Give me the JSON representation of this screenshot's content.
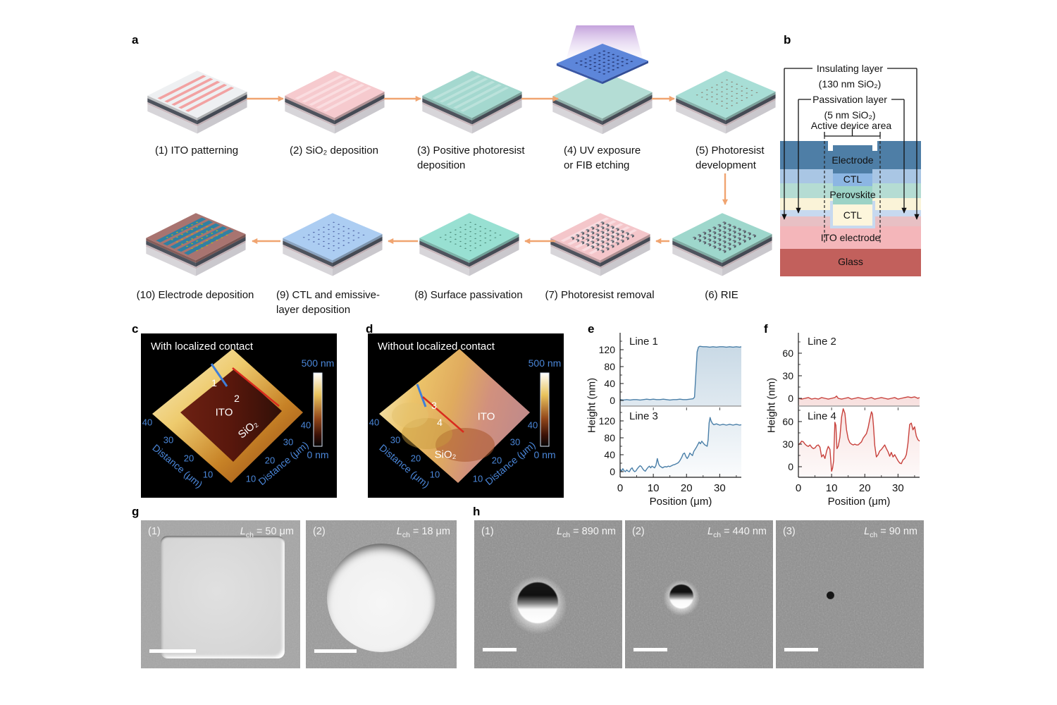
{
  "figure": {
    "panel_labels": {
      "a": "a",
      "b": "b",
      "c": "c",
      "d": "d",
      "e": "e",
      "f": "f",
      "g": "g",
      "h": "h"
    }
  },
  "panel_a": {
    "steps": [
      {
        "lines": [
          "(1) ITO patterning"
        ]
      },
      {
        "lines": [
          "(2) SiO₂ deposition"
        ]
      },
      {
        "lines": [
          "(3) Positive photoresist",
          "deposition"
        ]
      },
      {
        "lines": [
          "(4) UV exposure",
          "or FIB etching"
        ]
      },
      {
        "lines": [
          "(5) Photoresist",
          "development"
        ]
      },
      {
        "lines": [
          "(6) RIE"
        ]
      },
      {
        "lines": [
          "(7) Photoresist removal"
        ]
      },
      {
        "lines": [
          "(8) Surface passivation"
        ]
      },
      {
        "lines": [
          "(9) CTL and emissive-",
          "layer deposition"
        ]
      },
      {
        "lines": [
          "(10) Electrode deposition"
        ]
      }
    ]
  },
  "panel_b": {
    "labels": {
      "insulating_1": "Insulating layer",
      "insulating_2": "(130 nm SiO₂)",
      "passivation_1": "Passivation layer",
      "passivation_2": "(5 nm SiO₂)",
      "active": "Active device area",
      "electrode": "Electrode",
      "ctl_top": "CTL",
      "perovskite": "Perovskite",
      "ctl_bottom": "CTL",
      "ito": "ITO electrode",
      "glass": "Glass"
    }
  },
  "panel_c": {
    "title": "With localized contact",
    "marker_1": "1",
    "marker_2": "2",
    "region_ito": "ITO",
    "region_sio2": "SiO₂",
    "colorbar_max": "500 nm",
    "colorbar_min": "0 nm",
    "ticks": [
      "40",
      "30",
      "20",
      "10"
    ],
    "axis_label": "Distance (μm)"
  },
  "panel_d": {
    "title": "Without localized contact",
    "marker_1": "3",
    "marker_2": "4",
    "region_ito": "ITO",
    "region_sio2": "SiO₂",
    "colorbar_max": "500 nm",
    "colorbar_min": "0 nm",
    "ticks": [
      "40",
      "30",
      "20",
      "10"
    ],
    "axis_label": "Distance (μm)"
  },
  "chart_data": [
    {
      "panel": "e",
      "type": "line",
      "xlabel": "Position (μm)",
      "ylabel": "Height (nm)",
      "xlim": [
        0,
        36.5
      ],
      "xticks": [
        0,
        10,
        20,
        30
      ],
      "yticks": [
        0,
        40,
        80,
        120
      ],
      "ylim": [
        -12,
        158
      ],
      "line_color": "#4a7fa8",
      "series": [
        {
          "name": "Line 1",
          "points": [
            [
              0,
              2
            ],
            [
              1,
              1
            ],
            [
              2,
              2
            ],
            [
              3,
              1
            ],
            [
              4,
              2
            ],
            [
              5,
              2
            ],
            [
              6,
              1
            ],
            [
              7,
              2
            ],
            [
              8,
              3
            ],
            [
              9,
              2
            ],
            [
              10,
              3
            ],
            [
              11,
              2
            ],
            [
              12,
              2
            ],
            [
              13,
              3
            ],
            [
              14,
              2
            ],
            [
              15,
              1
            ],
            [
              16,
              2
            ],
            [
              17,
              2
            ],
            [
              18,
              3
            ],
            [
              19,
              2
            ],
            [
              20,
              2
            ],
            [
              21,
              3
            ],
            [
              22,
              4
            ],
            [
              22.4,
              8
            ],
            [
              22.8,
              60
            ],
            [
              23.2,
              115
            ],
            [
              23.6,
              126
            ],
            [
              24,
              128
            ],
            [
              25,
              127
            ],
            [
              26,
              127
            ],
            [
              27,
              126
            ],
            [
              28,
              127
            ],
            [
              29,
              126
            ],
            [
              30,
              127
            ],
            [
              31,
              127
            ],
            [
              32,
              126
            ],
            [
              33,
              127
            ],
            [
              34,
              126
            ],
            [
              35,
              127
            ],
            [
              36,
              126
            ],
            [
              36.5,
              127
            ]
          ]
        },
        {
          "name": "Line 3",
          "points": [
            [
              0,
              6
            ],
            [
              0.4,
              1
            ],
            [
              0.8,
              7
            ],
            [
              1.2,
              2
            ],
            [
              1.6,
              0
            ],
            [
              2,
              4
            ],
            [
              2.4,
              1
            ],
            [
              2.8,
              0
            ],
            [
              3.2,
              6
            ],
            [
              3.6,
              9
            ],
            [
              4,
              3
            ],
            [
              4.4,
              0
            ],
            [
              4.8,
              2
            ],
            [
              5.2,
              7
            ],
            [
              5.6,
              11
            ],
            [
              6,
              14
            ],
            [
              6.4,
              12
            ],
            [
              6.8,
              7
            ],
            [
              7.2,
              3
            ],
            [
              7.6,
              1
            ],
            [
              8,
              6
            ],
            [
              8.4,
              10
            ],
            [
              8.8,
              13
            ],
            [
              9.2,
              9
            ],
            [
              9.6,
              13
            ],
            [
              10,
              11
            ],
            [
              10.4,
              9
            ],
            [
              10.8,
              15
            ],
            [
              11.2,
              31
            ],
            [
              11.6,
              18
            ],
            [
              12,
              13
            ],
            [
              12.4,
              11
            ],
            [
              12.8,
              9
            ],
            [
              13.2,
              11
            ],
            [
              13.6,
              12
            ],
            [
              14,
              11
            ],
            [
              14.5,
              13
            ],
            [
              15,
              12
            ],
            [
              15.5,
              14
            ],
            [
              16,
              16
            ],
            [
              16.5,
              17
            ],
            [
              17,
              19
            ],
            [
              17.5,
              21
            ],
            [
              18,
              26
            ],
            [
              18.5,
              33
            ],
            [
              19,
              42
            ],
            [
              19.4,
              44
            ],
            [
              19.8,
              36
            ],
            [
              20.2,
              31
            ],
            [
              20.6,
              36
            ],
            [
              21,
              44
            ],
            [
              21.4,
              41
            ],
            [
              21.8,
              38
            ],
            [
              22.2,
              48
            ],
            [
              22.6,
              53
            ],
            [
              23,
              58
            ],
            [
              23.4,
              64
            ],
            [
              23.8,
              70
            ],
            [
              24.2,
              66
            ],
            [
              24.6,
              72
            ],
            [
              25,
              68
            ],
            [
              25.4,
              64
            ],
            [
              25.8,
              62
            ],
            [
              26.2,
              60
            ],
            [
              26.5,
              75
            ],
            [
              26.8,
              115
            ],
            [
              27.1,
              128
            ],
            [
              27.4,
              120
            ],
            [
              27.8,
              114
            ],
            [
              28.2,
              111
            ],
            [
              29,
              113
            ],
            [
              30,
              110
            ],
            [
              31,
              112
            ],
            [
              32,
              110
            ],
            [
              33,
              112
            ],
            [
              34,
              110
            ],
            [
              35,
              112
            ],
            [
              36,
              110
            ],
            [
              36.5,
              111
            ]
          ]
        }
      ]
    },
    {
      "panel": "f",
      "type": "line",
      "xlabel": "Position (μm)",
      "ylabel": "Height (nm)",
      "xlim": [
        0,
        36.5
      ],
      "xticks": [
        0,
        10,
        20,
        30
      ],
      "yticks": [
        0,
        30,
        60
      ],
      "ylim": [
        -14,
        88
      ],
      "line_color": "#c8413c",
      "series": [
        {
          "name": "Line 2",
          "points": [
            [
              0,
              0
            ],
            [
              1,
              -1
            ],
            [
              2,
              0
            ],
            [
              3,
              1
            ],
            [
              4,
              -1
            ],
            [
              5,
              0
            ],
            [
              6,
              -1
            ],
            [
              7,
              1
            ],
            [
              8,
              0
            ],
            [
              9,
              -1
            ],
            [
              10,
              0
            ],
            [
              11,
              1
            ],
            [
              11.5,
              3
            ],
            [
              12,
              0
            ],
            [
              13,
              -1
            ],
            [
              14,
              0
            ],
            [
              15,
              1
            ],
            [
              16,
              -1
            ],
            [
              17,
              0
            ],
            [
              18,
              1
            ],
            [
              19,
              0
            ],
            [
              20,
              -1
            ],
            [
              21,
              0
            ],
            [
              22,
              1
            ],
            [
              23,
              -1
            ],
            [
              24,
              0
            ],
            [
              25,
              1
            ],
            [
              26,
              0
            ],
            [
              27,
              -1
            ],
            [
              28,
              0
            ],
            [
              29,
              1
            ],
            [
              30,
              -1
            ],
            [
              31,
              0
            ],
            [
              32,
              1
            ],
            [
              33,
              2
            ],
            [
              34,
              1
            ],
            [
              35,
              2
            ],
            [
              36,
              0
            ],
            [
              36.5,
              1
            ]
          ]
        },
        {
          "name": "Line 4",
          "points": [
            [
              0,
              29
            ],
            [
              0.5,
              31
            ],
            [
              1,
              34
            ],
            [
              1.5,
              33
            ],
            [
              2,
              30
            ],
            [
              2.5,
              28
            ],
            [
              3,
              27
            ],
            [
              3.5,
              29
            ],
            [
              4,
              26
            ],
            [
              4.5,
              24
            ],
            [
              5,
              25
            ],
            [
              5.5,
              28
            ],
            [
              6,
              29
            ],
            [
              6.5,
              26
            ],
            [
              7,
              13
            ],
            [
              7.5,
              16
            ],
            [
              8,
              11
            ],
            [
              8.5,
              21
            ],
            [
              9,
              27
            ],
            [
              9.5,
              23
            ],
            [
              10,
              -6
            ],
            [
              10.3,
              -2
            ],
            [
              10.6,
              8
            ],
            [
              11,
              59
            ],
            [
              11.3,
              55
            ],
            [
              11.6,
              24
            ],
            [
              12,
              27
            ],
            [
              12.5,
              39
            ],
            [
              13,
              66
            ],
            [
              13.5,
              77
            ],
            [
              14,
              71
            ],
            [
              14.5,
              49
            ],
            [
              15,
              37
            ],
            [
              15.5,
              32
            ],
            [
              16,
              30
            ],
            [
              16.5,
              29
            ],
            [
              17,
              30
            ],
            [
              17.5,
              29
            ],
            [
              18,
              29
            ],
            [
              18.5,
              31
            ],
            [
              19,
              33
            ],
            [
              19.5,
              38
            ],
            [
              20,
              41
            ],
            [
              20.5,
              44
            ],
            [
              21,
              52
            ],
            [
              21.5,
              63
            ],
            [
              22,
              73
            ],
            [
              22.3,
              70
            ],
            [
              22.6,
              55
            ],
            [
              23,
              28
            ],
            [
              23.5,
              13
            ],
            [
              24,
              16
            ],
            [
              24.5,
              21
            ],
            [
              25,
              23
            ],
            [
              25.5,
              26
            ],
            [
              26,
              29
            ],
            [
              26.5,
              24
            ],
            [
              27,
              20
            ],
            [
              27.5,
              14
            ],
            [
              28,
              19
            ],
            [
              28.5,
              13
            ],
            [
              29,
              16
            ],
            [
              29.5,
              12
            ],
            [
              30,
              8
            ],
            [
              30.5,
              5
            ],
            [
              31,
              4
            ],
            [
              31.5,
              9
            ],
            [
              32,
              11
            ],
            [
              32.5,
              16
            ],
            [
              33,
              31
            ],
            [
              33.5,
              56
            ],
            [
              34,
              58
            ],
            [
              34.5,
              49
            ],
            [
              35,
              53
            ],
            [
              35.5,
              41
            ],
            [
              36,
              36
            ],
            [
              36.5,
              34
            ]
          ]
        }
      ]
    }
  ],
  "panel_g": {
    "images": [
      {
        "tag": "(1)",
        "lch": "L",
        "lch_sub": "ch",
        "lch_val": " = 50 μm"
      },
      {
        "tag": "(2)",
        "lch": "L",
        "lch_sub": "ch",
        "lch_val": " = 18 μm"
      }
    ]
  },
  "panel_h": {
    "images": [
      {
        "tag": "(1)",
        "lch": "L",
        "lch_sub": "ch",
        "lch_val": " = 890 nm"
      },
      {
        "tag": "(2)",
        "lch": "L",
        "lch_sub": "ch",
        "lch_val": " = 440 nm"
      },
      {
        "tag": "(3)",
        "lch": "L",
        "lch_sub": "ch",
        "lch_val": " = 90 nm"
      }
    ]
  },
  "colors": {
    "arrow": "#f0a470",
    "afm_axis_text": "#4a86d8",
    "plot_blue": "#4a7fa8",
    "plot_red": "#c8413c",
    "layer_electrode": "#4e7ea6",
    "layer_ctl_top": "#8cb6e3",
    "layer_perovskite": "#9cd3c6",
    "layer_ctl_bottom": "#fdf6dc",
    "layer_ito": "#f4b6ba",
    "layer_glass": "#c2605c"
  }
}
